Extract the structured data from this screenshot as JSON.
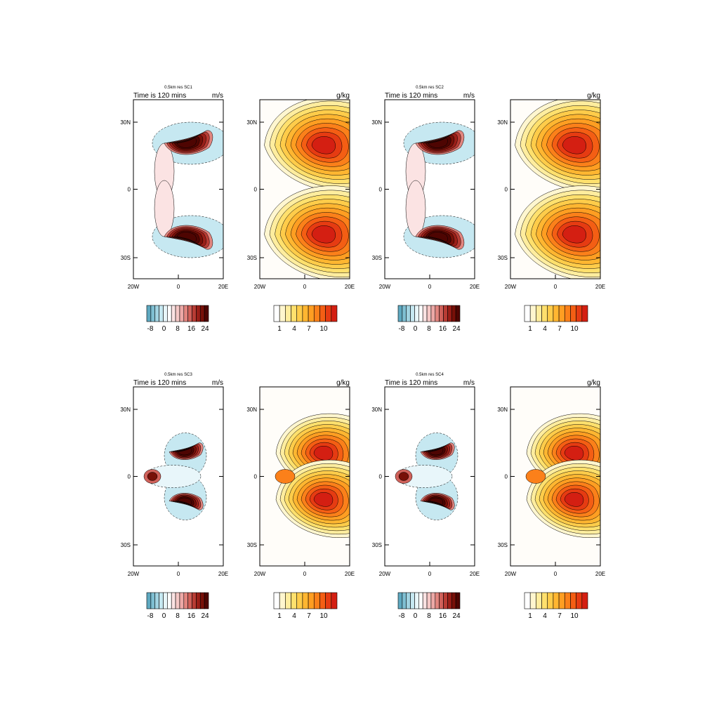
{
  "chart_data": {
    "type": "contour-map",
    "colors": {
      "wind": [
        "#5ea8c0",
        "#7fbfd2",
        "#a2d4e2",
        "#c6e8f1",
        "#e8f6fa",
        "#ffffff",
        "#fbe3e3",
        "#f5c8c6",
        "#eda9a7",
        "#e2857f",
        "#d0615a",
        "#b83c34",
        "#9a1f18",
        "#771008",
        "#4e0502"
      ],
      "moisture": [
        "#ffffff",
        "#fff6cf",
        "#ffed9e",
        "#ffe06d",
        "#ffcc4a",
        "#ffb631",
        "#ff9e22",
        "#fb801a",
        "#f45e14",
        "#e63b12",
        "#d41f12"
      ],
      "background": "#fffdf9"
    },
    "rows": [
      {
        "panels": [
          {
            "kind": "wind",
            "title": "0.5km res SC1",
            "left_label": "Time is 120 mins",
            "right_label": "m/s",
            "lat_ticks": [
              "30N",
              "0",
              "30S"
            ],
            "lon_ticks": [
              "20W",
              "0",
              "20E"
            ],
            "colorbar_labels": [
              "-8",
              "0",
              "8",
              "16",
              "24"
            ]
          },
          {
            "kind": "moisture",
            "title": "",
            "left_label": "",
            "right_label": "g/kg",
            "lat_ticks": [
              "30N",
              "0",
              "30S"
            ],
            "lon_ticks": [
              "20W",
              "0",
              "20E"
            ],
            "colorbar_labels": [
              "1",
              "4",
              "7",
              "10"
            ]
          },
          {
            "kind": "wind",
            "title": "0.5km res SC2",
            "left_label": "Time is 120 mins",
            "right_label": "m/s",
            "lat_ticks": [
              "30N",
              "0",
              "30S"
            ],
            "lon_ticks": [
              "20W",
              "0",
              "20E"
            ],
            "colorbar_labels": [
              "-8",
              "0",
              "8",
              "16",
              "24"
            ]
          },
          {
            "kind": "moisture",
            "title": "",
            "left_label": "",
            "right_label": "g/kg",
            "lat_ticks": [
              "30N",
              "0",
              "30S"
            ],
            "lon_ticks": [
              "20W",
              "0",
              "20E"
            ],
            "colorbar_labels": [
              "1",
              "4",
              "7",
              "10"
            ]
          }
        ]
      },
      {
        "panels": [
          {
            "kind": "wind",
            "title": "0.5km res SC3",
            "left_label": "Time is 120 mins",
            "right_label": "m/s",
            "lat_ticks": [
              "30N",
              "0",
              "30S"
            ],
            "lon_ticks": [
              "20W",
              "0",
              "20E"
            ],
            "colorbar_labels": [
              "-8",
              "0",
              "8",
              "16",
              "24"
            ]
          },
          {
            "kind": "moisture",
            "title": "",
            "left_label": "",
            "right_label": "g/kg",
            "lat_ticks": [
              "30N",
              "0",
              "30S"
            ],
            "lon_ticks": [
              "20W",
              "0",
              "20E"
            ],
            "colorbar_labels": [
              "1",
              "4",
              "7",
              "10"
            ]
          },
          {
            "kind": "wind",
            "title": "0.5km res SC4",
            "left_label": "Time is 120 mins",
            "right_label": "m/s",
            "lat_ticks": [
              "30N",
              "0",
              "30S"
            ],
            "lon_ticks": [
              "20W",
              "0",
              "20E"
            ],
            "colorbar_labels": [
              "-8",
              "0",
              "8",
              "16",
              "24"
            ]
          },
          {
            "kind": "moisture",
            "title": "",
            "left_label": "",
            "right_label": "g/kg",
            "lat_ticks": [
              "30N",
              "0",
              "30S"
            ],
            "lon_ticks": [
              "20W",
              "0",
              "20E"
            ],
            "colorbar_labels": [
              "1",
              "4",
              "7",
              "10"
            ]
          }
        ]
      }
    ]
  }
}
